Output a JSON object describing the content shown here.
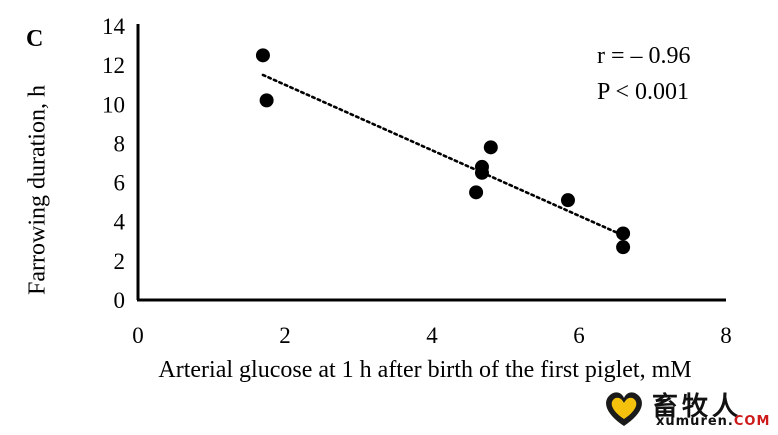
{
  "panel_label": "C",
  "stats": {
    "r": "r = – 0.96",
    "p": "P < 0.001"
  },
  "watermark": {
    "chinese": "畜牧人",
    "site_prefix": "xumuren.",
    "site_suffix": "COM"
  },
  "chart_data": {
    "type": "scatter",
    "xlabel": "Arterial glucose at 1 h after birth of the first piglet, mM",
    "ylabel": "Farrowing duration, h",
    "xlim": [
      0,
      8
    ],
    "ylim": [
      0,
      14
    ],
    "xticks": [
      0,
      2,
      4,
      6,
      8
    ],
    "yticks": [
      0,
      2,
      4,
      6,
      8,
      10,
      12,
      14
    ],
    "grid": false,
    "points": [
      {
        "x": 1.7,
        "y": 12.5
      },
      {
        "x": 1.75,
        "y": 10.2
      },
      {
        "x": 4.6,
        "y": 5.5
      },
      {
        "x": 4.68,
        "y": 6.5
      },
      {
        "x": 4.68,
        "y": 6.8
      },
      {
        "x": 4.8,
        "y": 7.8
      },
      {
        "x": 5.85,
        "y": 5.1
      },
      {
        "x": 6.6,
        "y": 3.4
      },
      {
        "x": 6.6,
        "y": 2.7
      }
    ],
    "trendline": {
      "style": "dotted",
      "x": [
        1.7,
        6.6
      ],
      "y": [
        11.5,
        3.3
      ]
    }
  }
}
